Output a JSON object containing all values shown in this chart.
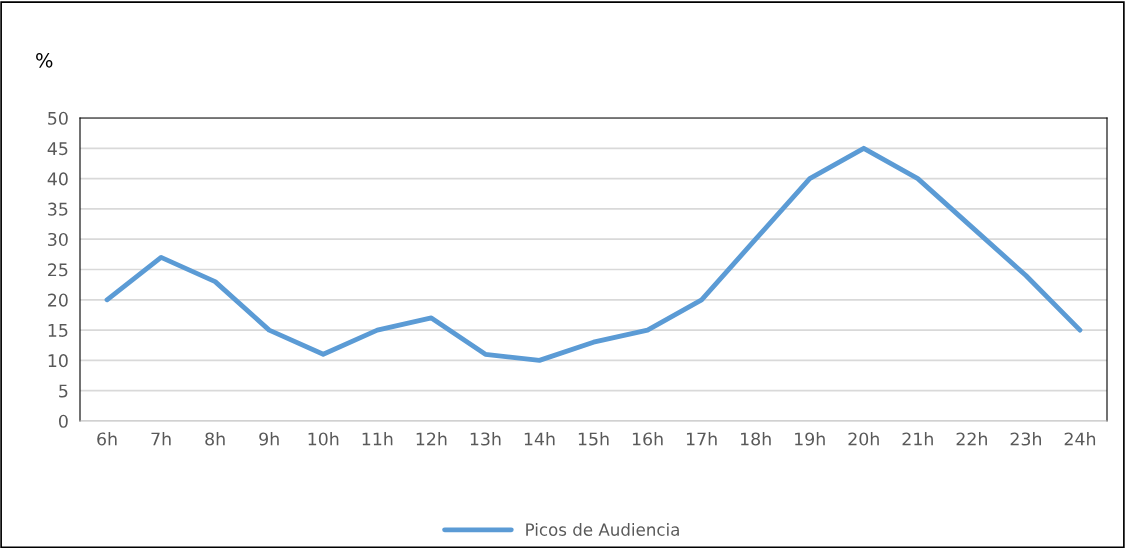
{
  "chart_data": {
    "type": "line",
    "ylabel": "%",
    "categories": [
      "6h",
      "7h",
      "8h",
      "9h",
      "10h",
      "11h",
      "12h",
      "13h",
      "14h",
      "15h",
      "16h",
      "17h",
      "18h",
      "19h",
      "20h",
      "21h",
      "22h",
      "23h",
      "24h"
    ],
    "series": [
      {
        "name": "Picos de Audiencia",
        "color": "#5b9bd5",
        "values": [
          20,
          27,
          23,
          15,
          11,
          15,
          17,
          11,
          10,
          13,
          15,
          20,
          30,
          40,
          45,
          40,
          32,
          24,
          15
        ]
      }
    ],
    "ylim": [
      0,
      50
    ],
    "yticks": [
      0,
      5,
      10,
      15,
      20,
      25,
      30,
      35,
      40,
      45,
      50
    ],
    "grid": "y",
    "legend": "bottom",
    "marker": "none",
    "line_style": "solid"
  }
}
